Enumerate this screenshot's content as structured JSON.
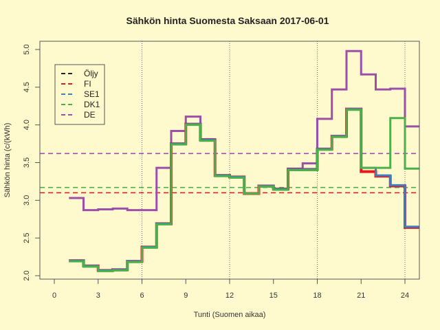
{
  "chart_data": {
    "type": "line",
    "step": true,
    "title": "Sähkön hinta Suomesta Saksaan 2017-06-01",
    "xlabel": "Tunti (Suomen aikaa)",
    "ylabel": "Sähkön hinta (c/(kWh)",
    "xlim": [
      -1,
      25
    ],
    "ylim": [
      2.0,
      5.0
    ],
    "xticks": [
      0,
      3,
      6,
      9,
      12,
      15,
      18,
      21,
      24
    ],
    "yticks": [
      2.0,
      2.5,
      3.0,
      3.5,
      4.0,
      4.5,
      5.0
    ],
    "vlines": [
      6,
      12,
      18,
      24
    ],
    "legend_position": "top-left",
    "x": [
      1,
      2,
      3,
      4,
      5,
      6,
      7,
      8,
      9,
      10,
      11,
      12,
      13,
      14,
      15,
      16,
      17,
      18,
      19,
      20,
      21,
      22,
      23,
      24
    ],
    "series": [
      {
        "name": "Öljy",
        "color": "#222222",
        "values": [],
        "mean": null
      },
      {
        "name": "DE",
        "color": "#9b4fa8",
        "values": [
          3.03,
          2.87,
          2.88,
          2.89,
          2.87,
          2.87,
          3.43,
          3.92,
          4.11,
          3.81,
          3.33,
          3.31,
          3.09,
          3.19,
          3.15,
          3.42,
          3.49,
          4.08,
          4.47,
          4.98,
          4.67,
          4.47,
          4.48,
          3.98
        ],
        "mean": 3.62
      },
      {
        "name": "FI",
        "color": "#e31a1c",
        "values": [
          2.2,
          2.13,
          2.07,
          2.08,
          2.19,
          2.38,
          2.69,
          3.75,
          4.01,
          3.8,
          3.33,
          3.31,
          3.09,
          3.19,
          3.15,
          3.41,
          3.41,
          3.68,
          3.85,
          4.21,
          3.38,
          3.32,
          3.19,
          2.64
        ],
        "mean": 3.1
      },
      {
        "name": "SE1",
        "color": "#3a7fc0",
        "values": [
          2.2,
          2.13,
          2.07,
          2.08,
          2.19,
          2.38,
          2.69,
          3.75,
          4.01,
          3.8,
          3.33,
          3.31,
          3.09,
          3.19,
          3.15,
          3.41,
          3.41,
          3.68,
          3.85,
          4.21,
          3.43,
          3.33,
          3.2,
          2.65
        ],
        "mean": null
      },
      {
        "name": "DK1",
        "color": "#4daf4a",
        "values": [
          2.19,
          2.12,
          2.06,
          2.07,
          2.18,
          2.37,
          2.68,
          3.74,
          4.0,
          3.79,
          3.32,
          3.3,
          3.09,
          3.18,
          3.14,
          3.4,
          3.4,
          3.67,
          3.84,
          4.2,
          3.43,
          3.43,
          4.09,
          3.42
        ],
        "mean": 3.17
      }
    ]
  },
  "legend": {
    "items": [
      {
        "label": "Öljy",
        "color": "#222222"
      },
      {
        "label": "FI",
        "color": "#e31a1c"
      },
      {
        "label": "SE1",
        "color": "#3a7fc0"
      },
      {
        "label": "DK1",
        "color": "#4daf4a"
      },
      {
        "label": "DE",
        "color": "#9b4fa8"
      }
    ]
  }
}
